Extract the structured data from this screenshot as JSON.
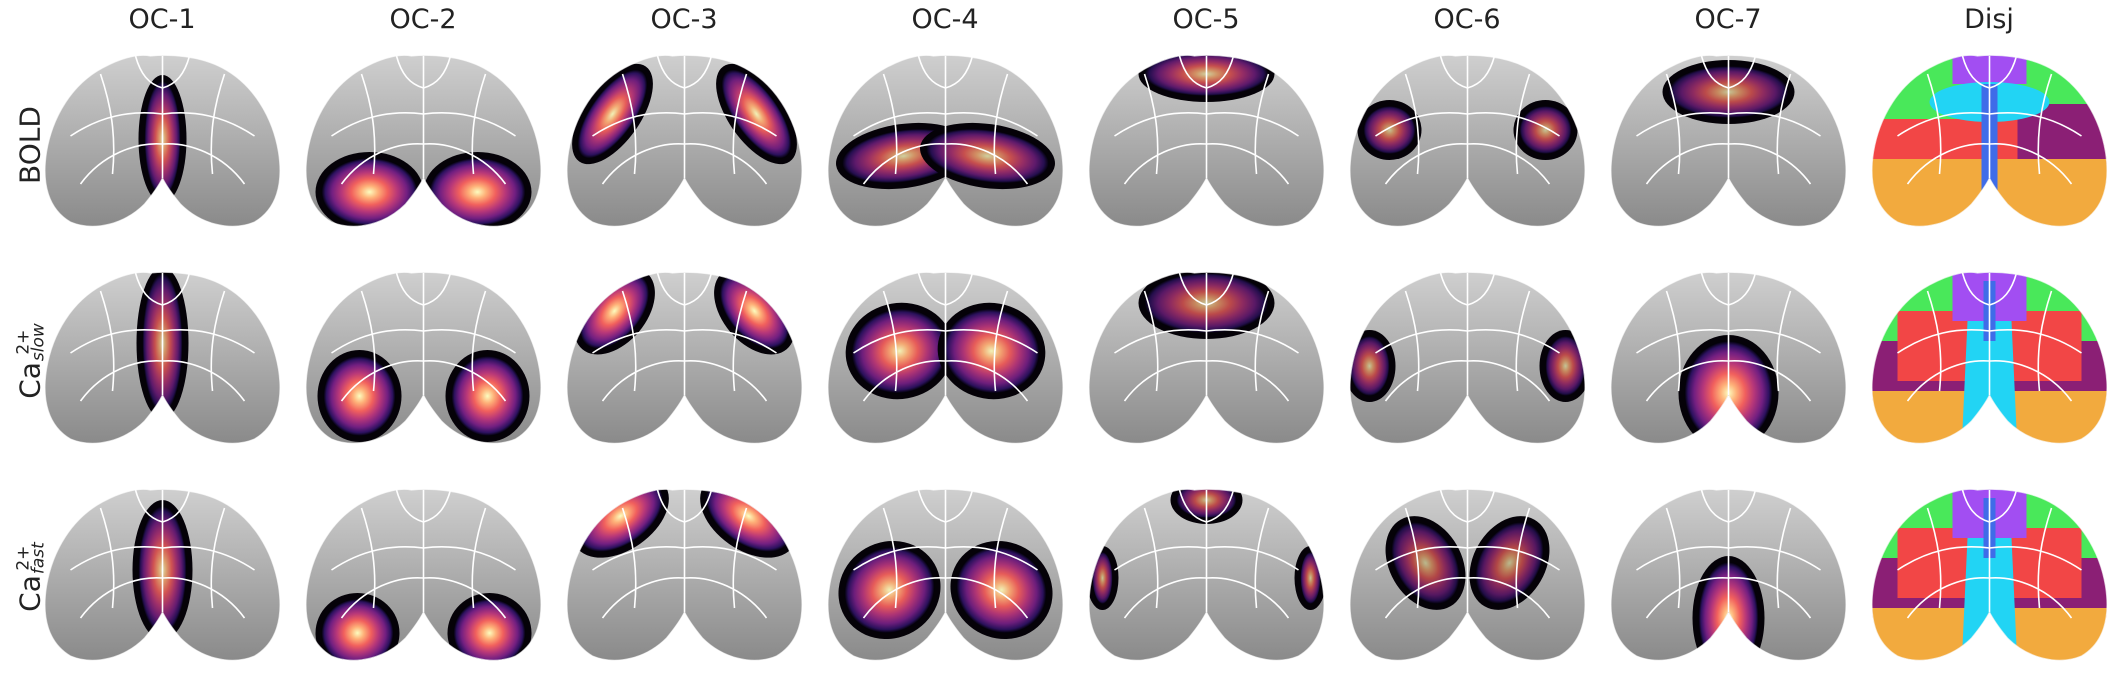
{
  "figure": {
    "columns": [
      "OC-1",
      "OC-2",
      "OC-3",
      "OC-4",
      "OC-5",
      "OC-6",
      "OC-7",
      "Disj"
    ],
    "rows": [
      {
        "label_main": "BOLD",
        "label_sup": "",
        "label_sub": ""
      },
      {
        "label_main": "Ca",
        "label_sup": "2+",
        "label_sub": "slow"
      },
      {
        "label_main": "Ca",
        "label_sup": "2+",
        "label_sub": "fast"
      }
    ],
    "colormap": "magma",
    "disjoint_colors": {
      "green": "#49e85a",
      "purple": "#a24ef2",
      "cyan": "#22d4f4",
      "red": "#f24646",
      "maroon": "#8b1f75",
      "blue": "#3f6ce8",
      "orange": "#f2aa3e"
    },
    "panels": [
      [
        {
          "icon": "brain-map-oc1-bold"
        },
        {
          "icon": "brain-map-oc2-bold"
        },
        {
          "icon": "brain-map-oc3-bold"
        },
        {
          "icon": "brain-map-oc4-bold"
        },
        {
          "icon": "brain-map-oc5-bold"
        },
        {
          "icon": "brain-map-oc6-bold"
        },
        {
          "icon": "brain-map-oc7-bold"
        },
        {
          "icon": "brain-map-disj-bold"
        }
      ],
      [
        {
          "icon": "brain-map-oc1-ca-slow"
        },
        {
          "icon": "brain-map-oc2-ca-slow"
        },
        {
          "icon": "brain-map-oc3-ca-slow"
        },
        {
          "icon": "brain-map-oc4-ca-slow"
        },
        {
          "icon": "brain-map-oc5-ca-slow"
        },
        {
          "icon": "brain-map-oc6-ca-slow"
        },
        {
          "icon": "brain-map-oc7-ca-slow"
        },
        {
          "icon": "brain-map-disj-ca-slow"
        }
      ],
      [
        {
          "icon": "brain-map-oc1-ca-fast"
        },
        {
          "icon": "brain-map-oc2-ca-fast"
        },
        {
          "icon": "brain-map-oc3-ca-fast"
        },
        {
          "icon": "brain-map-oc4-ca-fast"
        },
        {
          "icon": "brain-map-oc5-ca-fast"
        },
        {
          "icon": "brain-map-oc6-ca-fast"
        },
        {
          "icon": "brain-map-oc7-ca-fast"
        },
        {
          "icon": "brain-map-disj-ca-fast"
        }
      ]
    ]
  }
}
